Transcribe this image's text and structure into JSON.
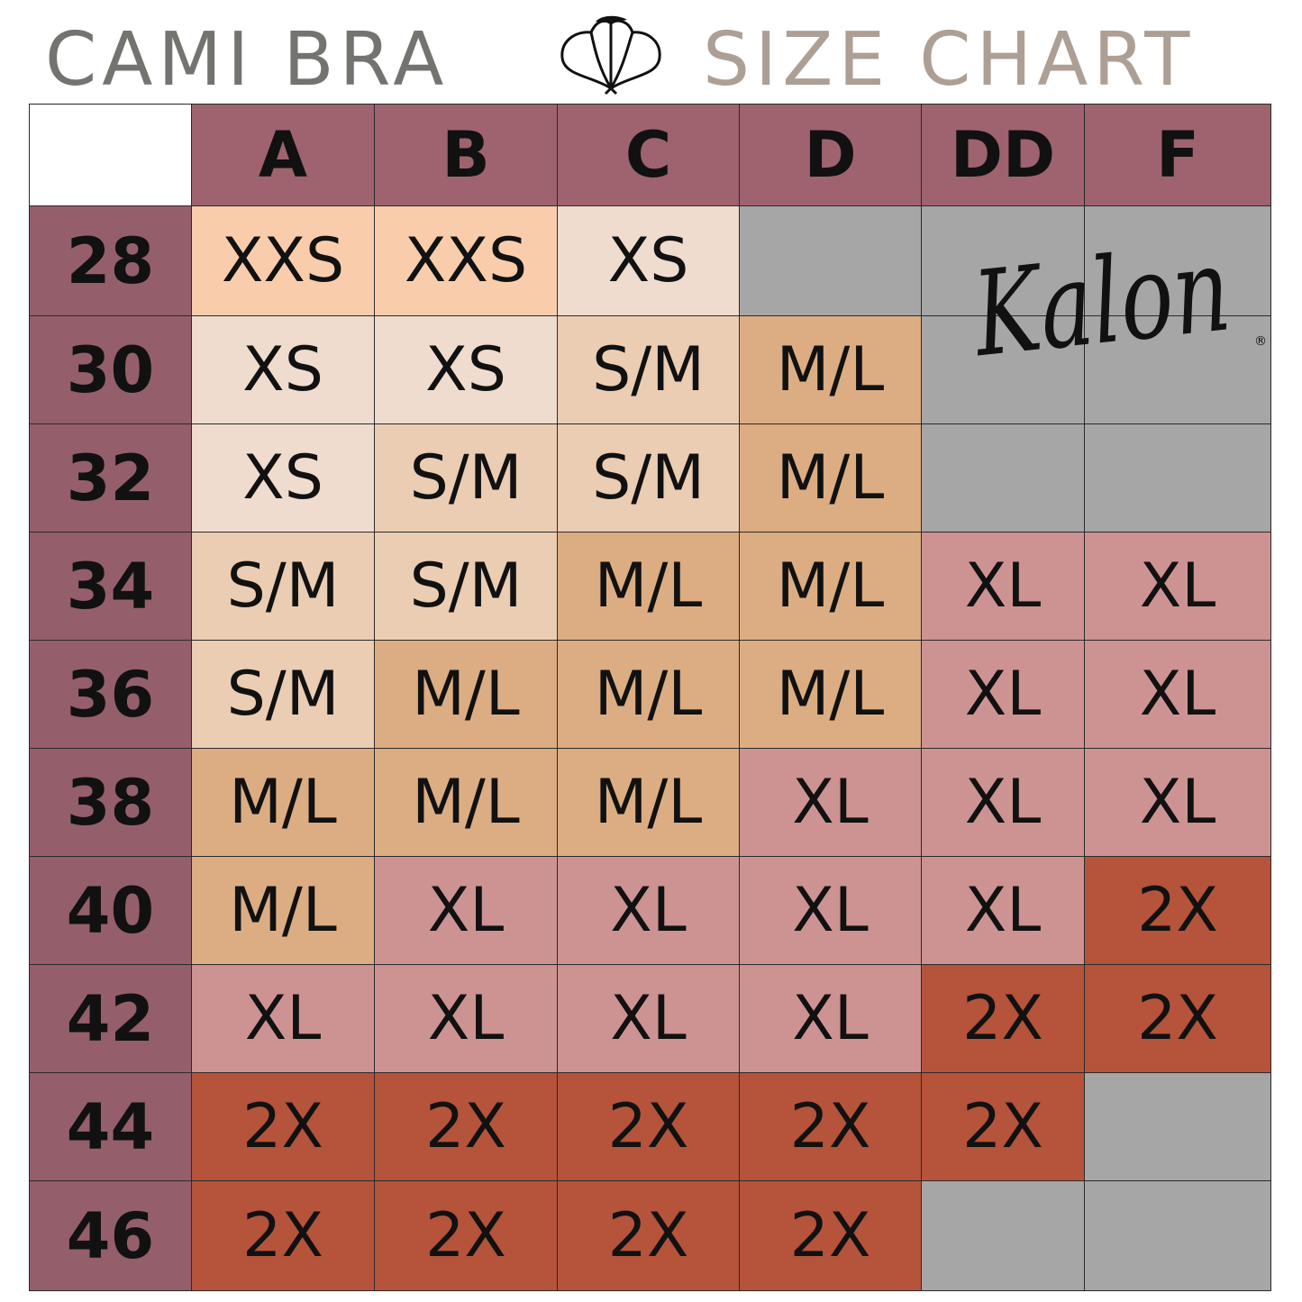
{
  "header": {
    "title_part1": "CAMI BRA",
    "title_part2": "SIZE CHART",
    "icon": "cotton-flower-icon"
  },
  "logo": {
    "text": "Kalon",
    "mark": "®"
  },
  "colors": {
    "header_bg": "#9e636e",
    "row_header_bg": "#945f6a",
    "corner_bg": "#ffffff",
    "XXS": "#f9cdac",
    "XS": "#efdccf",
    "S/M": "#ebcdb4",
    "M/L": "#dcad83",
    "XL": "#cd9393",
    "2X": "#b5543b",
    "empty": "#a6a6a6"
  },
  "chart_data": {
    "type": "table",
    "title": "CAMI BRA SIZE CHART",
    "columns": [
      "A",
      "B",
      "C",
      "D",
      "DD",
      "F"
    ],
    "rows": [
      "28",
      "30",
      "32",
      "34",
      "36",
      "38",
      "40",
      "42",
      "44",
      "46"
    ],
    "cells": [
      [
        "XXS",
        "XXS",
        "XS",
        null,
        null,
        null
      ],
      [
        "XS",
        "XS",
        "S/M",
        "M/L",
        null,
        null
      ],
      [
        "XS",
        "S/M",
        "S/M",
        "M/L",
        null,
        null
      ],
      [
        "S/M",
        "S/M",
        "M/L",
        "M/L",
        "XL",
        "XL"
      ],
      [
        "S/M",
        "M/L",
        "M/L",
        "M/L",
        "XL",
        "XL"
      ],
      [
        "M/L",
        "M/L",
        "M/L",
        "XL",
        "XL",
        "XL"
      ],
      [
        "M/L",
        "XL",
        "XL",
        "XL",
        "XL",
        "2X"
      ],
      [
        "XL",
        "XL",
        "XL",
        "XL",
        "2X",
        "2X"
      ],
      [
        "2X",
        "2X",
        "2X",
        "2X",
        "2X",
        null
      ],
      [
        "2X",
        "2X",
        "2X",
        "2X",
        null,
        null
      ]
    ]
  }
}
